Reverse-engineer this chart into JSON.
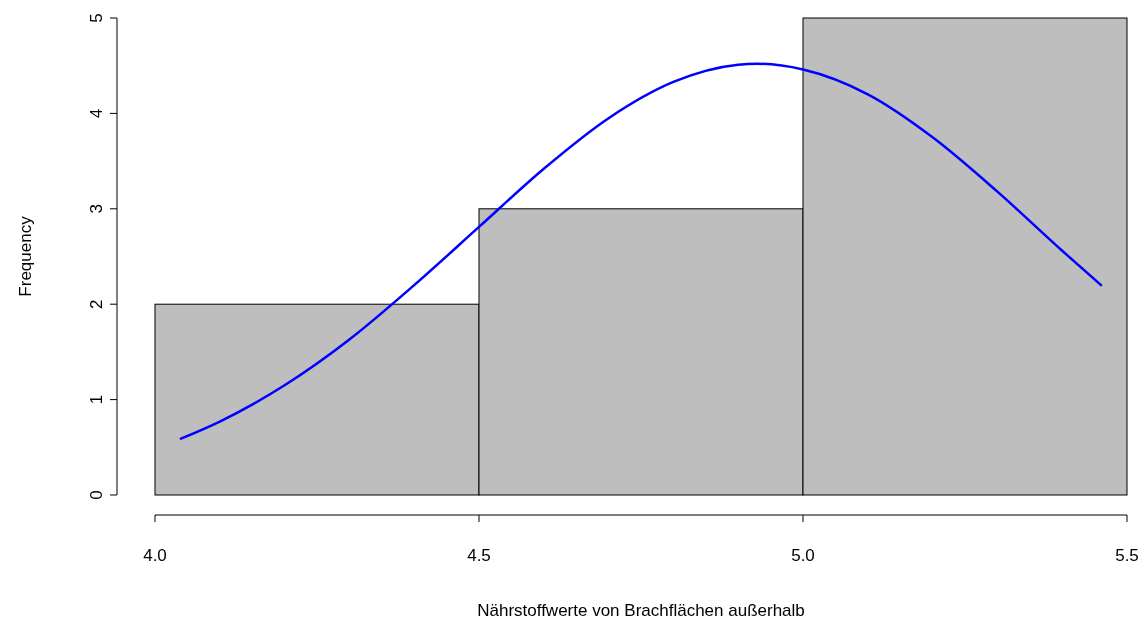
{
  "chart_data": {
    "type": "histogram",
    "xlabel": "Nährstoffwerte von Brachflächen außerhalb",
    "ylabel": "Frequency",
    "xlim": [
      4,
      5.5
    ],
    "xticks": [
      {
        "value": 4,
        "label": "4.0"
      },
      {
        "value": 4.5,
        "label": "4.5"
      },
      {
        "value": 5,
        "label": "5.0"
      },
      {
        "value": 5.5,
        "label": "5.5"
      }
    ],
    "ylim": [
      0,
      5
    ],
    "yticks": [
      0,
      1,
      2,
      3,
      4,
      5
    ],
    "series": [
      {
        "bins": [
          4,
          4.5,
          5,
          5.5
        ],
        "values": [
          2,
          3,
          5
        ],
        "color": "#bebebe"
      },
      {
        "type": "line",
        "color": "#0000ff",
        "x": [
          4.04,
          4.1,
          4.2,
          4.3,
          4.4,
          4.5,
          4.6,
          4.7,
          4.8,
          4.9,
          4.93,
          5.0,
          5.1,
          5.2,
          5.3,
          5.4,
          5.46
        ],
        "values": [
          0.59,
          0.77,
          1.15,
          1.63,
          2.2,
          2.81,
          3.42,
          3.95,
          4.33,
          4.51,
          4.52,
          4.46,
          4.2,
          3.75,
          3.18,
          2.56,
          2.2
        ]
      }
    ]
  }
}
